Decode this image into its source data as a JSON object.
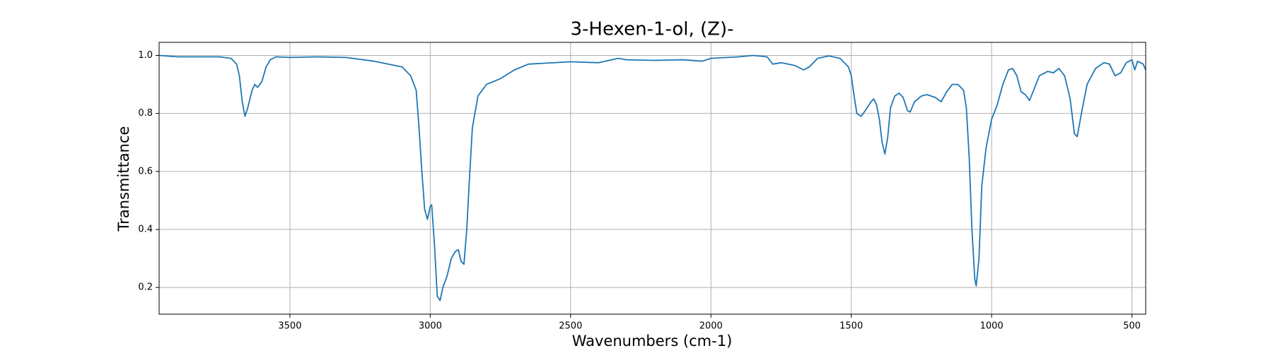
{
  "chart_data": {
    "type": "line",
    "title": "3-Hexen-1-ol, (Z)-",
    "xlabel": "Wavenumbers (cm-1)",
    "ylabel": "Transmittance",
    "x": [
      3966,
      3900,
      3850,
      3800,
      3750,
      3710,
      3690,
      3680,
      3670,
      3660,
      3650,
      3635,
      3625,
      3615,
      3600,
      3585,
      3570,
      3550,
      3500,
      3400,
      3300,
      3200,
      3150,
      3100,
      3070,
      3050,
      3040,
      3030,
      3020,
      3010,
      3000,
      2995,
      2985,
      2975,
      2965,
      2955,
      2940,
      2925,
      2910,
      2900,
      2890,
      2880,
      2870,
      2860,
      2850,
      2830,
      2800,
      2750,
      2700,
      2650,
      2500,
      2400,
      2330,
      2300,
      2200,
      2100,
      2030,
      2000,
      1900,
      1850,
      1800,
      1780,
      1750,
      1700,
      1670,
      1650,
      1620,
      1580,
      1540,
      1510,
      1500,
      1490,
      1480,
      1465,
      1450,
      1430,
      1420,
      1410,
      1400,
      1390,
      1380,
      1370,
      1360,
      1345,
      1330,
      1315,
      1300,
      1290,
      1275,
      1250,
      1230,
      1200,
      1180,
      1160,
      1140,
      1120,
      1100,
      1090,
      1080,
      1070,
      1060,
      1055,
      1045,
      1035,
      1020,
      1000,
      980,
      960,
      940,
      925,
      910,
      895,
      880,
      865,
      850,
      830,
      800,
      780,
      760,
      740,
      720,
      705,
      695,
      680,
      660,
      630,
      600,
      580,
      560,
      540,
      520,
      500,
      490,
      480,
      460,
      451
    ],
    "values": [
      1.0,
      0.995,
      0.995,
      0.995,
      0.995,
      0.99,
      0.97,
      0.93,
      0.84,
      0.79,
      0.82,
      0.88,
      0.9,
      0.89,
      0.91,
      0.96,
      0.985,
      0.995,
      0.993,
      0.995,
      0.993,
      0.98,
      0.97,
      0.96,
      0.93,
      0.88,
      0.75,
      0.6,
      0.47,
      0.435,
      0.48,
      0.485,
      0.35,
      0.17,
      0.155,
      0.2,
      0.24,
      0.3,
      0.325,
      0.33,
      0.29,
      0.28,
      0.4,
      0.58,
      0.75,
      0.86,
      0.9,
      0.92,
      0.95,
      0.97,
      0.978,
      0.975,
      0.99,
      0.985,
      0.983,
      0.985,
      0.98,
      0.99,
      0.995,
      1.0,
      0.995,
      0.97,
      0.975,
      0.965,
      0.95,
      0.96,
      0.99,
      0.998,
      0.99,
      0.96,
      0.93,
      0.86,
      0.8,
      0.79,
      0.81,
      0.84,
      0.85,
      0.83,
      0.78,
      0.7,
      0.66,
      0.72,
      0.82,
      0.86,
      0.87,
      0.855,
      0.81,
      0.805,
      0.84,
      0.86,
      0.865,
      0.855,
      0.84,
      0.875,
      0.9,
      0.9,
      0.88,
      0.82,
      0.65,
      0.4,
      0.23,
      0.205,
      0.3,
      0.55,
      0.68,
      0.78,
      0.83,
      0.9,
      0.95,
      0.955,
      0.93,
      0.875,
      0.865,
      0.845,
      0.88,
      0.93,
      0.945,
      0.94,
      0.955,
      0.93,
      0.85,
      0.73,
      0.72,
      0.8,
      0.9,
      0.955,
      0.975,
      0.97,
      0.93,
      0.94,
      0.975,
      0.985,
      0.95,
      0.98,
      0.97,
      0.95
    ],
    "color": "#1f77b4",
    "xlim": [
      3966,
      451
    ],
    "xticks": [
      3500,
      3000,
      2500,
      2000,
      1500,
      1000,
      500
    ],
    "ylim": [
      0.108,
      1.045
    ],
    "yticks": [
      0.2,
      0.4,
      0.6,
      0.8,
      {
        "value": 1,
        "label": "1.0"
      }
    ],
    "grid": true
  }
}
